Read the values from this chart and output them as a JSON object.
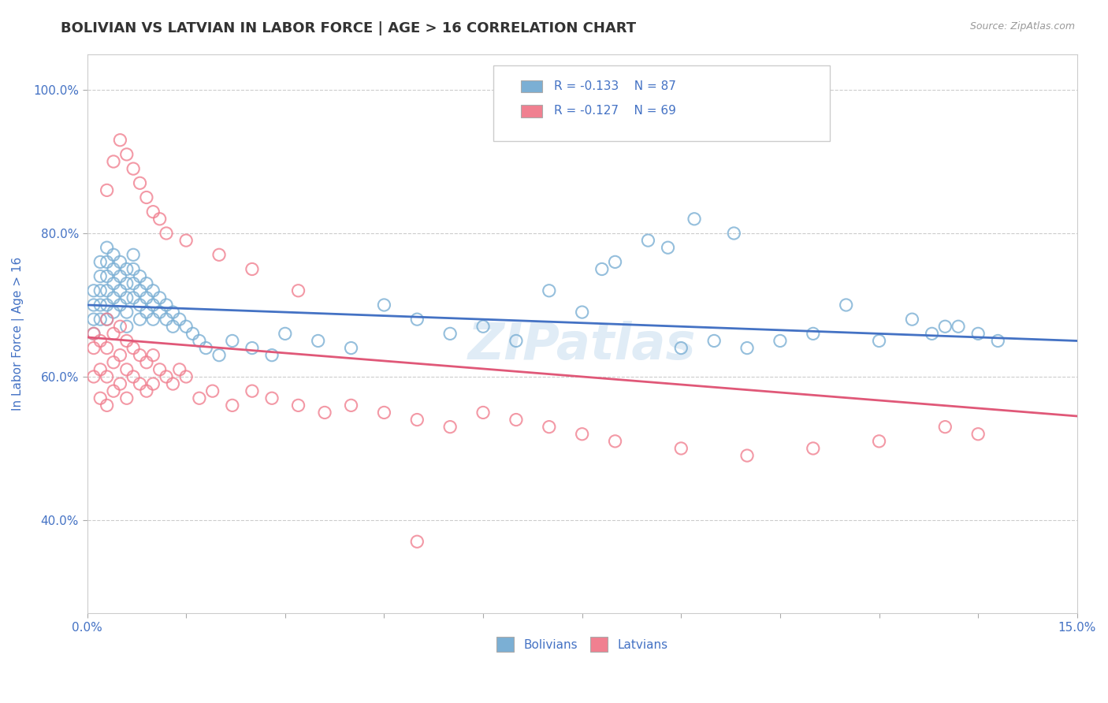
{
  "title": "BOLIVIAN VS LATVIAN IN LABOR FORCE | AGE > 16 CORRELATION CHART",
  "source_text": "Source: ZipAtlas.com",
  "ylabel": "In Labor Force | Age > 16",
  "xlim": [
    0.0,
    0.15
  ],
  "ylim": [
    0.27,
    1.05
  ],
  "xticks": [
    0.0,
    0.015,
    0.03,
    0.045,
    0.06,
    0.075,
    0.09,
    0.105,
    0.12,
    0.135,
    0.15
  ],
  "xtick_labels": [
    "0.0%",
    "",
    "",
    "",
    "",
    "",
    "",
    "",
    "",
    "",
    "15.0%"
  ],
  "yticks": [
    0.4,
    0.6,
    0.8,
    1.0
  ],
  "ytick_labels": [
    "40.0%",
    "60.0%",
    "80.0%",
    "100.0%"
  ],
  "bolivians_color": "#7bafd4",
  "latvians_color": "#f08090",
  "bolivians_line_color": "#4472c4",
  "latvians_line_color": "#e05878",
  "legend_R_bolivians": "R = -0.133",
  "legend_N_bolivians": "N = 87",
  "legend_R_latvians": "R = -0.127",
  "legend_N_latvians": "N = 69",
  "watermark": "ZIPatlas",
  "background_color": "#ffffff",
  "grid_color": "#cccccc",
  "title_color": "#333333",
  "tick_color": "#4472c4",
  "bolivians_x": [
    0.001,
    0.001,
    0.001,
    0.001,
    0.002,
    0.002,
    0.002,
    0.002,
    0.002,
    0.003,
    0.003,
    0.003,
    0.003,
    0.003,
    0.003,
    0.004,
    0.004,
    0.004,
    0.004,
    0.004,
    0.005,
    0.005,
    0.005,
    0.005,
    0.006,
    0.006,
    0.006,
    0.006,
    0.006,
    0.007,
    0.007,
    0.007,
    0.007,
    0.008,
    0.008,
    0.008,
    0.008,
    0.009,
    0.009,
    0.009,
    0.01,
    0.01,
    0.01,
    0.011,
    0.011,
    0.012,
    0.012,
    0.013,
    0.013,
    0.014,
    0.015,
    0.016,
    0.017,
    0.018,
    0.02,
    0.022,
    0.025,
    0.028,
    0.03,
    0.035,
    0.04,
    0.045,
    0.05,
    0.055,
    0.06,
    0.065,
    0.07,
    0.075,
    0.085,
    0.09,
    0.095,
    0.1,
    0.11,
    0.12,
    0.125,
    0.13,
    0.135,
    0.115,
    0.08,
    0.105,
    0.128,
    0.132,
    0.138,
    0.092,
    0.098,
    0.088,
    0.078
  ],
  "bolivians_y": [
    0.72,
    0.7,
    0.68,
    0.66,
    0.76,
    0.74,
    0.72,
    0.7,
    0.68,
    0.78,
    0.76,
    0.74,
    0.72,
    0.7,
    0.68,
    0.77,
    0.75,
    0.73,
    0.71,
    0.69,
    0.76,
    0.74,
    0.72,
    0.7,
    0.75,
    0.73,
    0.71,
    0.69,
    0.67,
    0.77,
    0.75,
    0.73,
    0.71,
    0.74,
    0.72,
    0.7,
    0.68,
    0.73,
    0.71,
    0.69,
    0.72,
    0.7,
    0.68,
    0.71,
    0.69,
    0.7,
    0.68,
    0.69,
    0.67,
    0.68,
    0.67,
    0.66,
    0.65,
    0.64,
    0.63,
    0.65,
    0.64,
    0.63,
    0.66,
    0.65,
    0.64,
    0.7,
    0.68,
    0.66,
    0.67,
    0.65,
    0.72,
    0.69,
    0.79,
    0.64,
    0.65,
    0.64,
    0.66,
    0.65,
    0.68,
    0.67,
    0.66,
    0.7,
    0.76,
    0.65,
    0.66,
    0.67,
    0.65,
    0.82,
    0.8,
    0.78,
    0.75
  ],
  "latvians_x": [
    0.001,
    0.001,
    0.001,
    0.002,
    0.002,
    0.002,
    0.003,
    0.003,
    0.003,
    0.003,
    0.004,
    0.004,
    0.004,
    0.005,
    0.005,
    0.005,
    0.006,
    0.006,
    0.006,
    0.007,
    0.007,
    0.008,
    0.008,
    0.009,
    0.009,
    0.01,
    0.01,
    0.011,
    0.012,
    0.013,
    0.014,
    0.015,
    0.017,
    0.019,
    0.022,
    0.025,
    0.028,
    0.032,
    0.036,
    0.04,
    0.045,
    0.05,
    0.055,
    0.06,
    0.065,
    0.07,
    0.075,
    0.08,
    0.09,
    0.1,
    0.11,
    0.12,
    0.13,
    0.135,
    0.003,
    0.004,
    0.005,
    0.006,
    0.007,
    0.008,
    0.009,
    0.01,
    0.011,
    0.012,
    0.015,
    0.02,
    0.025,
    0.032,
    0.05
  ],
  "latvians_y": [
    0.66,
    0.64,
    0.6,
    0.65,
    0.61,
    0.57,
    0.68,
    0.64,
    0.6,
    0.56,
    0.66,
    0.62,
    0.58,
    0.67,
    0.63,
    0.59,
    0.65,
    0.61,
    0.57,
    0.64,
    0.6,
    0.63,
    0.59,
    0.62,
    0.58,
    0.63,
    0.59,
    0.61,
    0.6,
    0.59,
    0.61,
    0.6,
    0.57,
    0.58,
    0.56,
    0.58,
    0.57,
    0.56,
    0.55,
    0.56,
    0.55,
    0.54,
    0.53,
    0.55,
    0.54,
    0.53,
    0.52,
    0.51,
    0.5,
    0.49,
    0.5,
    0.51,
    0.53,
    0.52,
    0.86,
    0.9,
    0.93,
    0.91,
    0.89,
    0.87,
    0.85,
    0.83,
    0.82,
    0.8,
    0.79,
    0.77,
    0.75,
    0.72,
    0.37
  ]
}
